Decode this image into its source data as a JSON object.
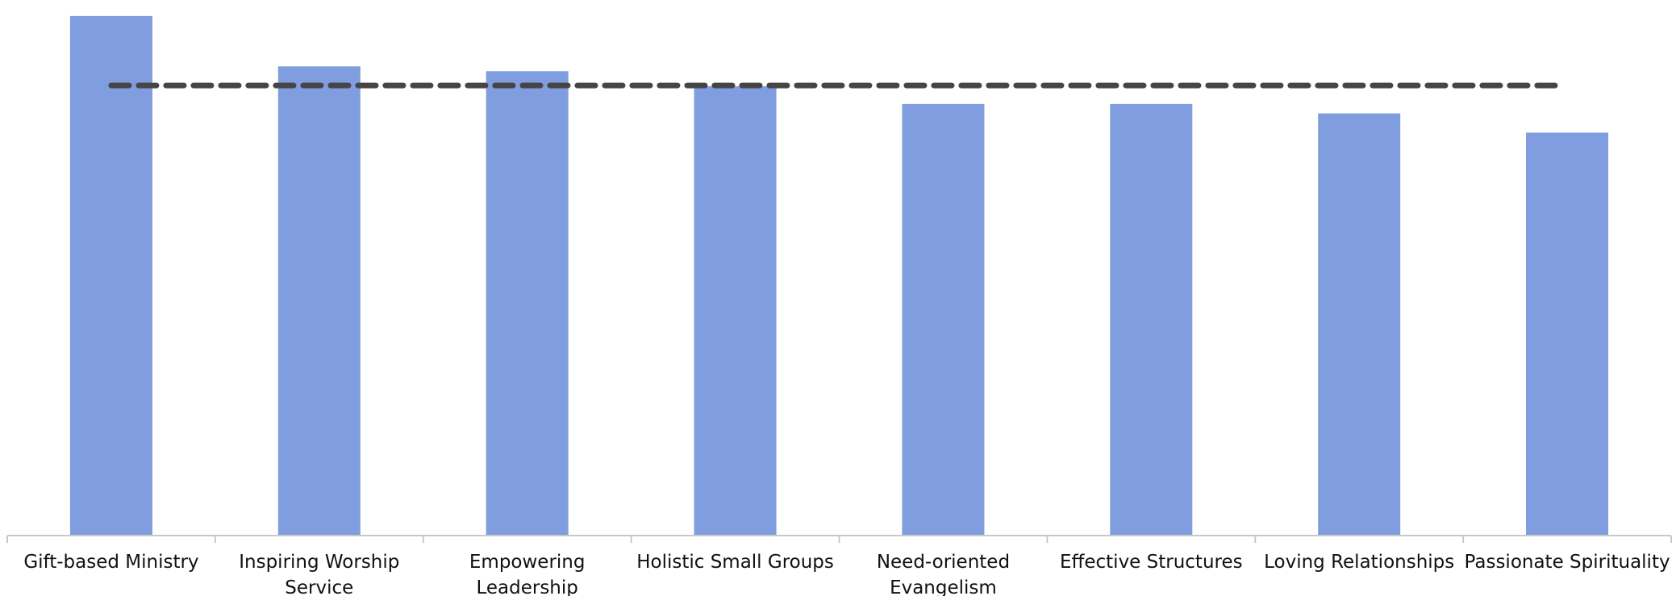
{
  "chart_data": {
    "type": "bar",
    "categories": [
      [
        "Gift-based Ministry"
      ],
      [
        "Inspiring Worship",
        "Service"
      ],
      [
        "Empowering",
        "Leadership"
      ],
      [
        "Holistic Small Groups"
      ],
      [
        "Need-oriented",
        "Evangelism"
      ],
      [
        "Effective Structures"
      ],
      [
        "Loving Relationships"
      ],
      [
        "Passionate Spirituality"
      ]
    ],
    "values": [
      65.0,
      58.7,
      58.1,
      56.2,
      54.0,
      54.0,
      52.8,
      50.4
    ],
    "reference_line": {
      "value": 56.3,
      "style": "dashed",
      "color": "#454545"
    },
    "ylim": [
      0,
      66
    ],
    "title": "",
    "xlabel": "",
    "ylabel": "",
    "grid": false,
    "legend": "none",
    "bar_color": "#7f9ddf",
    "axis_color": "#c8c8c8"
  }
}
